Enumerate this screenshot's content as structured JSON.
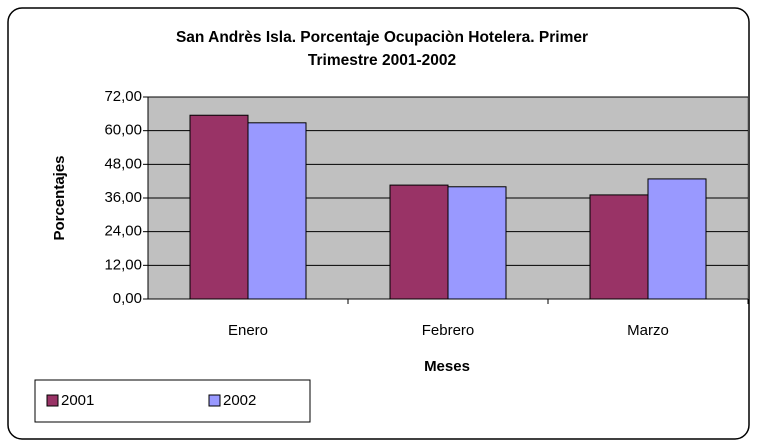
{
  "chart_data": {
    "type": "bar",
    "title": "San Andrès Isla. Porcentaje Ocupaciòn Hotelera. Primer Trimestre 2001-2002",
    "x_label": "Meses",
    "y_label": "Porcentajes",
    "categories": [
      "Enero",
      "Febrero",
      "Marzo"
    ],
    "series": [
      {
        "name": "2001",
        "color": "#993366",
        "values": [
          65.5,
          40.6,
          37.1
        ]
      },
      {
        "name": "2002",
        "color": "#9999ff",
        "values": [
          62.8,
          40.0,
          42.8
        ]
      }
    ],
    "ylim": [
      0,
      72
    ],
    "yticks": [
      {
        "value": 0,
        "label": "0,00"
      },
      {
        "value": 12,
        "label": "12,00"
      },
      {
        "value": 24,
        "label": "24,00"
      },
      {
        "value": 36,
        "label": "36,00"
      },
      {
        "value": 48,
        "label": "48,00"
      },
      {
        "value": 60,
        "label": "60,00"
      },
      {
        "value": 72,
        "label": "72,00"
      }
    ],
    "grid": true,
    "legend": "bottom-left"
  }
}
